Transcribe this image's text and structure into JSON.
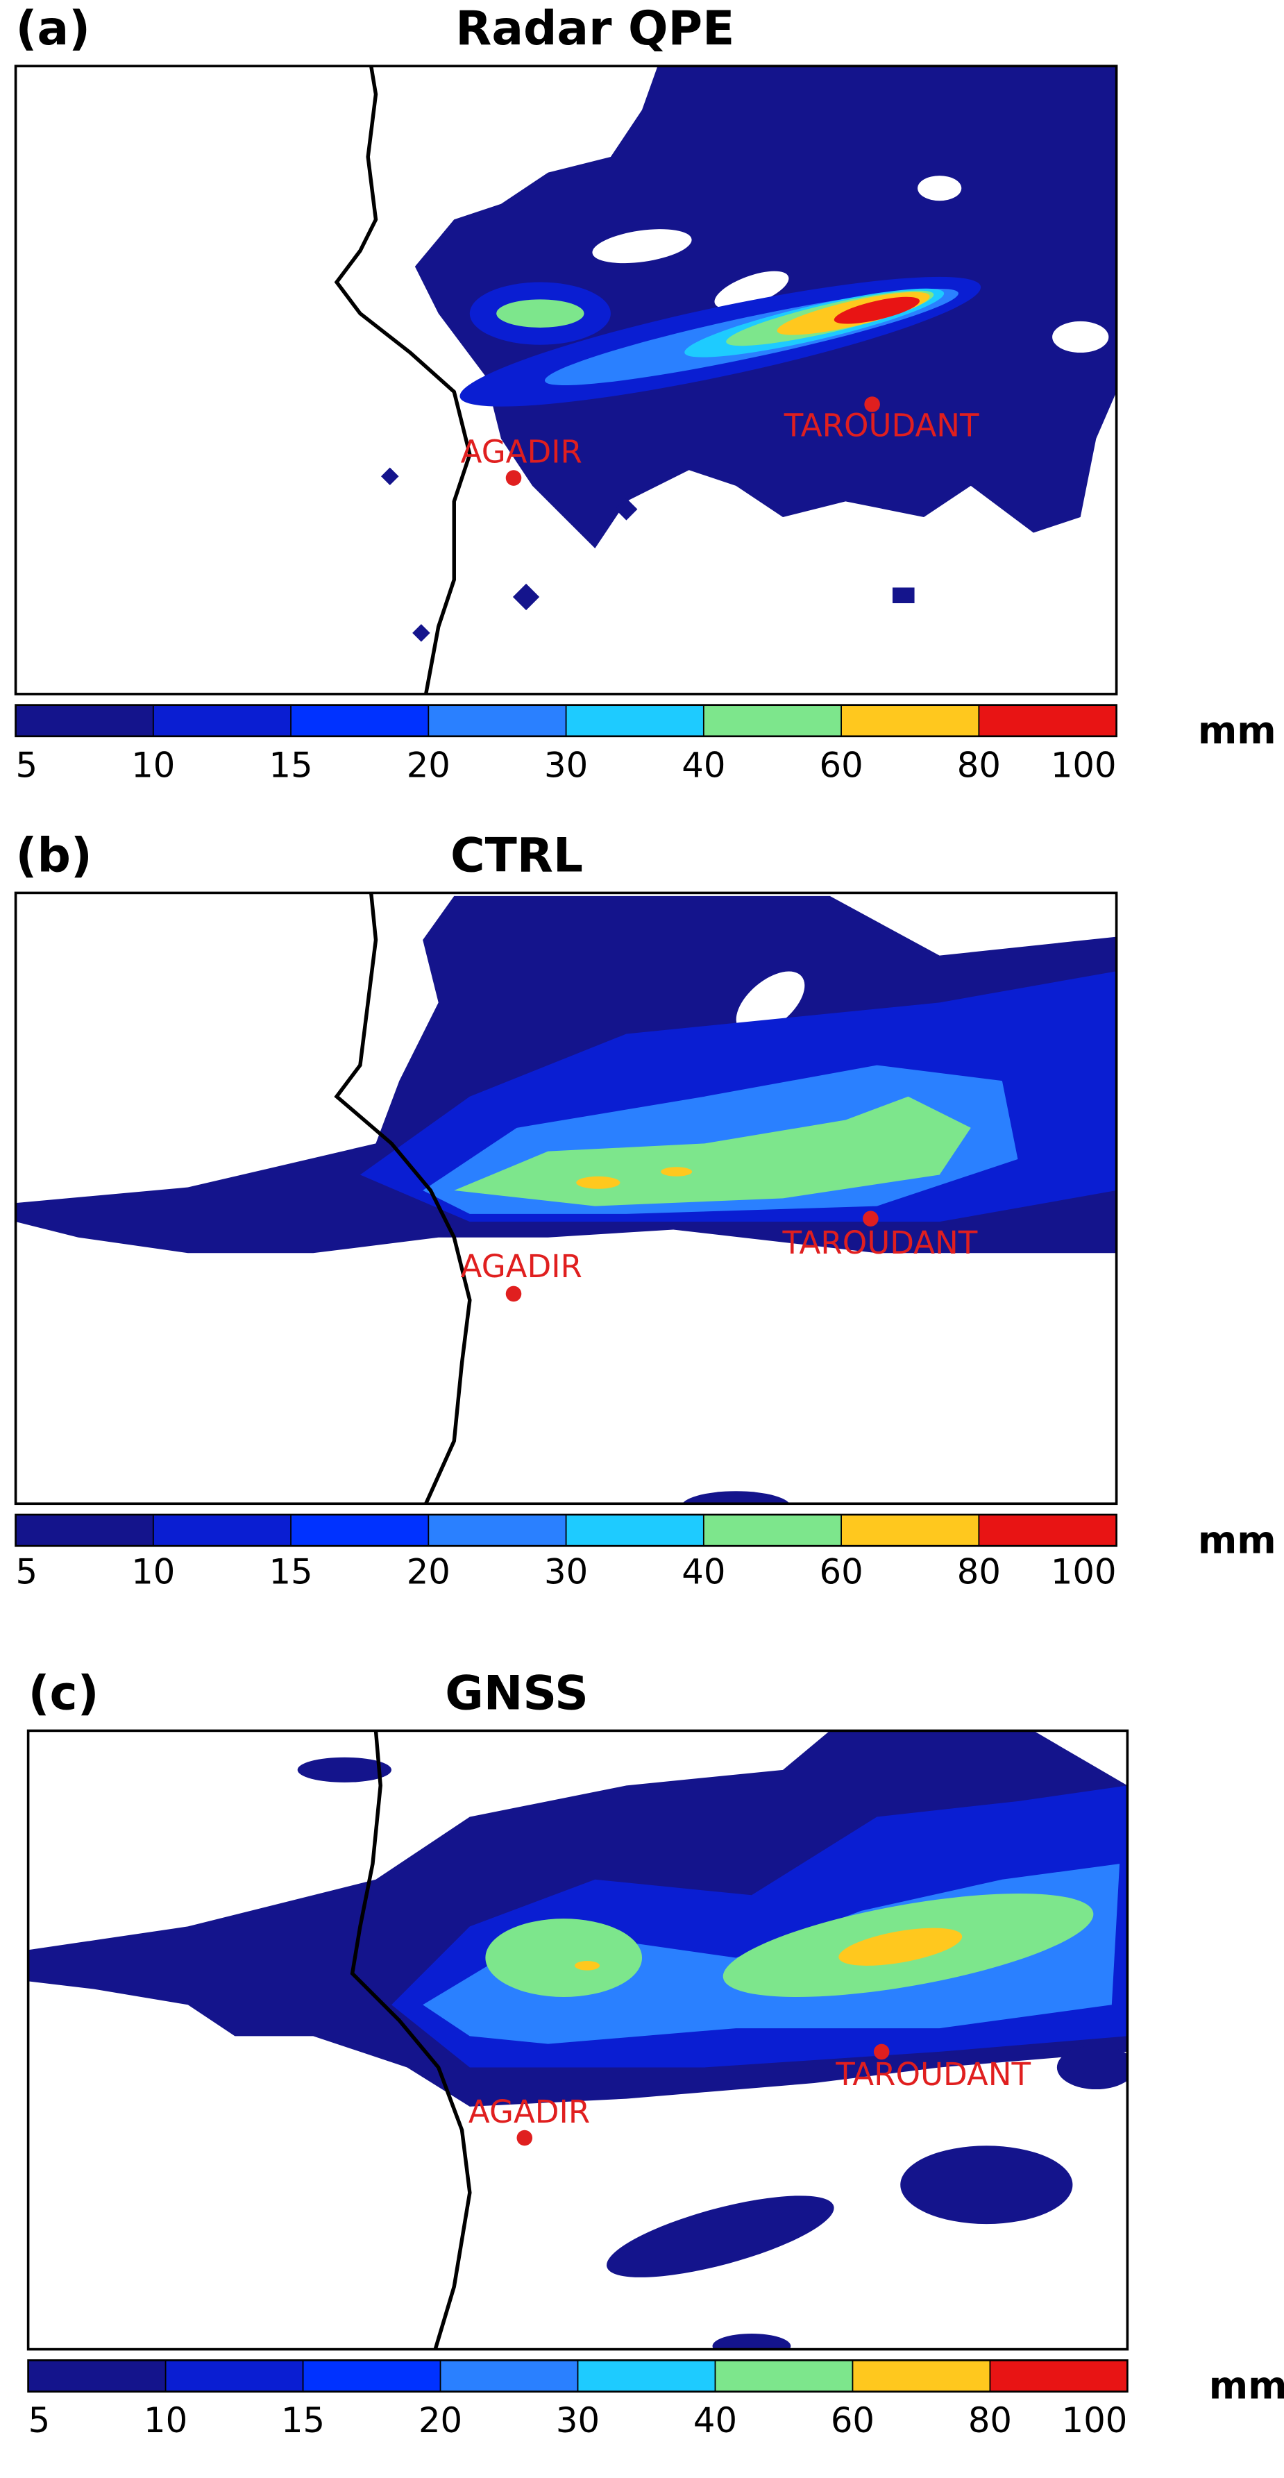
{
  "panels": [
    {
      "label": "(a)",
      "title": "Radar QPE",
      "cities": [
        "AGADIR",
        "TAROUDANT"
      ]
    },
    {
      "label": "(b)",
      "title": "CTRL",
      "cities": [
        "AGADIR",
        "TAROUDANT"
      ]
    },
    {
      "label": "(c)",
      "title": "GNSS",
      "cities": [
        "AGADIR",
        "TAROUDANT"
      ]
    }
  ],
  "colorbar": {
    "levels": [
      5,
      10,
      15,
      20,
      30,
      40,
      60,
      80,
      100
    ],
    "colors": [
      "#14148c",
      "#0a1ed2",
      "#0032ff",
      "#2a80ff",
      "#1ecbff",
      "#7de68c",
      "#ffc81e",
      "#e81414"
    ],
    "unit": "mm"
  }
}
